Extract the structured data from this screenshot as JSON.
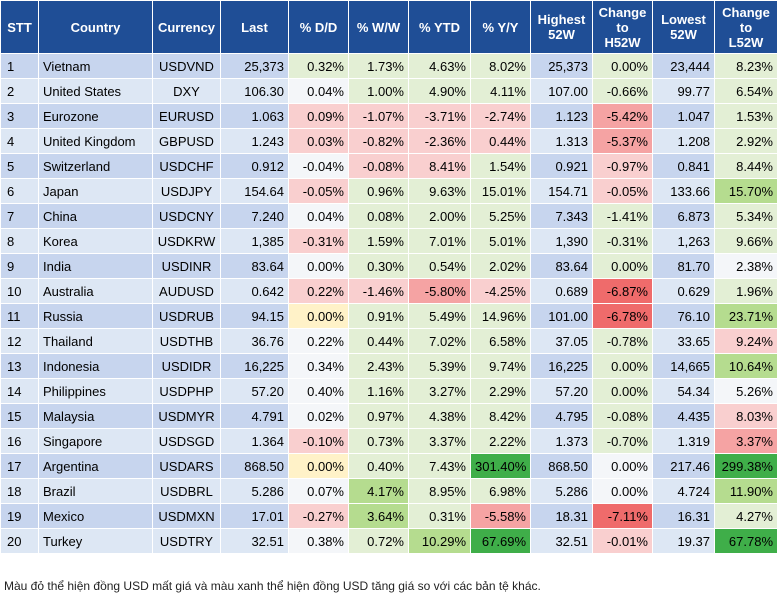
{
  "table": {
    "header": [
      "STT",
      "Country",
      "Currency",
      "Last",
      "% D/D",
      "% W/W",
      "% YTD",
      "% Y/Y",
      "Highest\n52W",
      "Change\nto\nH52W",
      "Lowest\n52W",
      "Change\nto\nL52W"
    ],
    "rows": [
      [
        "1",
        "Vietnam",
        "USDVND",
        "25,373",
        "0.32%",
        "1.73%",
        "4.63%",
        "8.02%",
        "25,373",
        "0.00%",
        "23,444",
        "8.23%"
      ],
      [
        "2",
        "United States",
        "DXY",
        "106.30",
        "0.04%",
        "1.00%",
        "4.90%",
        "4.11%",
        "107.00",
        "-0.66%",
        "99.77",
        "6.54%"
      ],
      [
        "3",
        "Eurozone",
        "EURUSD",
        "1.063",
        "0.09%",
        "-1.07%",
        "-3.71%",
        "-2.74%",
        "1.123",
        "-5.42%",
        "1.047",
        "1.53%"
      ],
      [
        "4",
        "United Kingdom",
        "GBPUSD",
        "1.243",
        "0.03%",
        "-0.82%",
        "-2.36%",
        "0.44%",
        "1.313",
        "-5.37%",
        "1.208",
        "2.92%"
      ],
      [
        "5",
        "Switzerland",
        "USDCHF",
        "0.912",
        "-0.04%",
        "-0.08%",
        "8.41%",
        "1.54%",
        "0.921",
        "-0.97%",
        "0.841",
        "8.44%"
      ],
      [
        "6",
        "Japan",
        "USDJPY",
        "154.64",
        "-0.05%",
        "0.96%",
        "9.63%",
        "15.01%",
        "154.71",
        "-0.05%",
        "133.66",
        "15.70%"
      ],
      [
        "7",
        "China",
        "USDCNY",
        "7.240",
        "0.04%",
        "0.08%",
        "2.00%",
        "5.25%",
        "7.343",
        "-1.41%",
        "6.873",
        "5.34%"
      ],
      [
        "8",
        "Korea",
        "USDKRW",
        "1,385",
        "-0.31%",
        "1.59%",
        "7.01%",
        "5.01%",
        "1,390",
        "-0.31%",
        "1,263",
        "9.66%"
      ],
      [
        "9",
        "India",
        "USDINR",
        "83.64",
        "0.00%",
        "0.30%",
        "0.54%",
        "2.02%",
        "83.64",
        "0.00%",
        "81.70",
        "2.38%"
      ],
      [
        "10",
        "Australia",
        "AUDUSD",
        "0.642",
        "0.22%",
        "-1.46%",
        "-5.80%",
        "-4.25%",
        "0.689",
        "-6.87%",
        "0.629",
        "1.96%"
      ],
      [
        "11",
        "Russia",
        "USDRUB",
        "94.15",
        "0.00%",
        "0.91%",
        "5.49%",
        "14.96%",
        "101.00",
        "-6.78%",
        "76.10",
        "23.71%"
      ],
      [
        "12",
        "Thailand",
        "USDTHB",
        "36.76",
        "0.22%",
        "0.44%",
        "7.02%",
        "6.58%",
        "37.05",
        "-0.78%",
        "33.65",
        "9.24%"
      ],
      [
        "13",
        "Indonesia",
        "USDIDR",
        "16,225",
        "0.34%",
        "2.43%",
        "5.39%",
        "9.74%",
        "16,225",
        "0.00%",
        "14,665",
        "10.64%"
      ],
      [
        "14",
        "Philippines",
        "USDPHP",
        "57.20",
        "0.40%",
        "1.16%",
        "3.27%",
        "2.29%",
        "57.20",
        "0.00%",
        "54.34",
        "5.26%"
      ],
      [
        "15",
        "Malaysia",
        "USDMYR",
        "4.791",
        "0.02%",
        "0.97%",
        "4.38%",
        "8.42%",
        "4.795",
        "-0.08%",
        "4.435",
        "8.03%"
      ],
      [
        "16",
        "Singapore",
        "USDSGD",
        "1.364",
        "-0.10%",
        "0.73%",
        "3.37%",
        "2.22%",
        "1.373",
        "-0.70%",
        "1.319",
        "3.37%"
      ],
      [
        "17",
        "Argentina",
        "USDARS",
        "868.50",
        "0.00%",
        "0.40%",
        "7.43%",
        "301.40%",
        "868.50",
        "0.00%",
        "217.46",
        "299.38%"
      ],
      [
        "18",
        "Brazil",
        "USDBRL",
        "5.286",
        "0.07%",
        "4.17%",
        "8.95%",
        "6.98%",
        "5.286",
        "0.00%",
        "4.724",
        "11.90%"
      ],
      [
        "19",
        "Mexico",
        "USDMXN",
        "17.01",
        "-0.27%",
        "3.64%",
        "0.31%",
        "-5.58%",
        "18.31",
        "-7.11%",
        "16.31",
        "4.27%"
      ],
      [
        "20",
        "Turkey",
        "USDTRY",
        "32.51",
        "0.38%",
        "0.72%",
        "10.29%",
        "67.69%",
        "32.51",
        "-0.01%",
        "19.37",
        "67.78%"
      ]
    ]
  },
  "footnote": "Màu đỏ thể hiện đồng USD mất giá và màu xanh thể hiện đồng USD tăng giá so với các bản tệ khác."
}
